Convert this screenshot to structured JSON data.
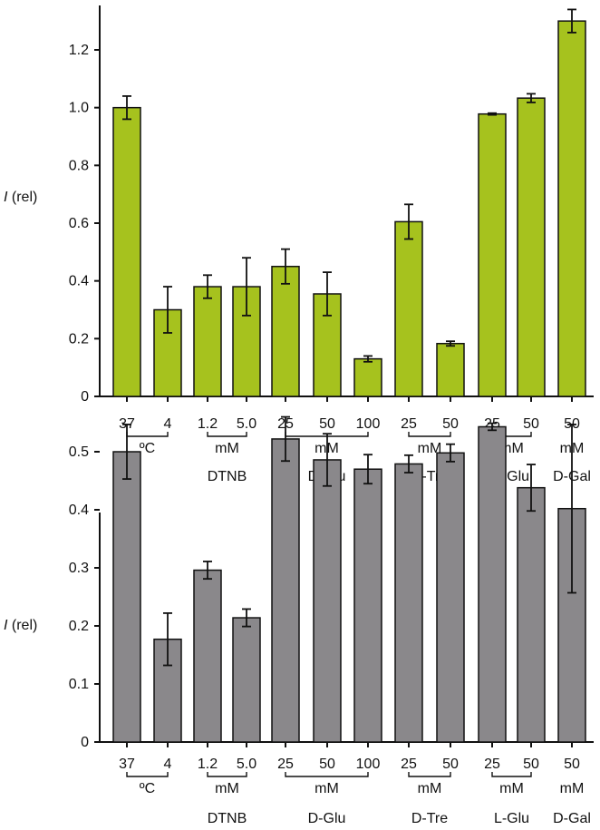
{
  "colors": {
    "top_bar": "#a6c21e",
    "bottom_bar": "#8a888b",
    "axis": "#111111"
  },
  "chart_data": [
    {
      "type": "bar",
      "title": "",
      "ylabel_italic": "I",
      "ylabel_rest": " (rel)",
      "ylim": [
        0,
        1.32
      ],
      "yticks": [
        "0",
        "0.2",
        "0.4",
        "0.6",
        "0.8",
        "1.0",
        "1.2"
      ],
      "ytick_values": [
        0,
        0.2,
        0.4,
        0.6,
        0.8,
        1.0,
        1.2
      ],
      "categories": [
        "37",
        "4",
        "1.2",
        "5.0",
        "25",
        "50",
        "100",
        "25",
        "50",
        "25",
        "50",
        "50"
      ],
      "values": [
        1.0,
        0.3,
        0.38,
        0.38,
        0.45,
        0.355,
        0.13,
        0.605,
        0.183,
        0.978,
        1.033,
        1.3
      ],
      "errors": [
        0.04,
        0.08,
        0.04,
        0.1,
        0.06,
        0.075,
        0.01,
        0.06,
        0.008,
        0.003,
        0.015,
        0.04
      ],
      "groups": [
        {
          "unit": "ºC",
          "name": "",
          "from": 0,
          "to": 1
        },
        {
          "unit": "mM",
          "name": "DTNB",
          "from": 2,
          "to": 3
        },
        {
          "unit": "mM",
          "name": "D-Glu",
          "from": 4,
          "to": 6
        },
        {
          "unit": "mM",
          "name": "D-Tre",
          "from": 7,
          "to": 8
        },
        {
          "unit": "mM",
          "name": "L-Glu",
          "from": 9,
          "to": 10
        },
        {
          "unit": "mM",
          "name": "D-Gal",
          "from": 11,
          "to": 11
        }
      ],
      "grid": false,
      "legend": "none"
    },
    {
      "type": "bar",
      "title": "",
      "ylabel_italic": "I",
      "ylabel_rest": " (rel)",
      "ylim": [
        0,
        0.56
      ],
      "yticks": [
        "0",
        "0.1",
        "0.2",
        "0.3",
        "0.4",
        "0.5"
      ],
      "ytick_values": [
        0,
        0.1,
        0.2,
        0.3,
        0.4,
        0.5
      ],
      "categories": [
        "37",
        "4",
        "1.2",
        "5.0",
        "25",
        "50",
        "100",
        "25",
        "50",
        "25",
        "50",
        "50"
      ],
      "values": [
        0.5,
        0.177,
        0.296,
        0.214,
        0.522,
        0.486,
        0.47,
        0.479,
        0.498,
        0.543,
        0.438,
        0.402
      ],
      "errors": [
        0.047,
        0.045,
        0.015,
        0.015,
        0.038,
        0.045,
        0.025,
        0.015,
        0.015,
        0.006,
        0.04,
        0.145
      ],
      "groups": [
        {
          "unit": "ºC",
          "name": "",
          "from": 0,
          "to": 1
        },
        {
          "unit": "mM",
          "name": "DTNB",
          "from": 2,
          "to": 3
        },
        {
          "unit": "mM",
          "name": "D-Glu",
          "from": 4,
          "to": 6
        },
        {
          "unit": "mM",
          "name": "D-Tre",
          "from": 7,
          "to": 8
        },
        {
          "unit": "mM",
          "name": "L-Glu",
          "from": 9,
          "to": 10
        },
        {
          "unit": "mM",
          "name": "D-Gal",
          "from": 11,
          "to": 11
        }
      ],
      "grid": false,
      "legend": "none"
    }
  ]
}
